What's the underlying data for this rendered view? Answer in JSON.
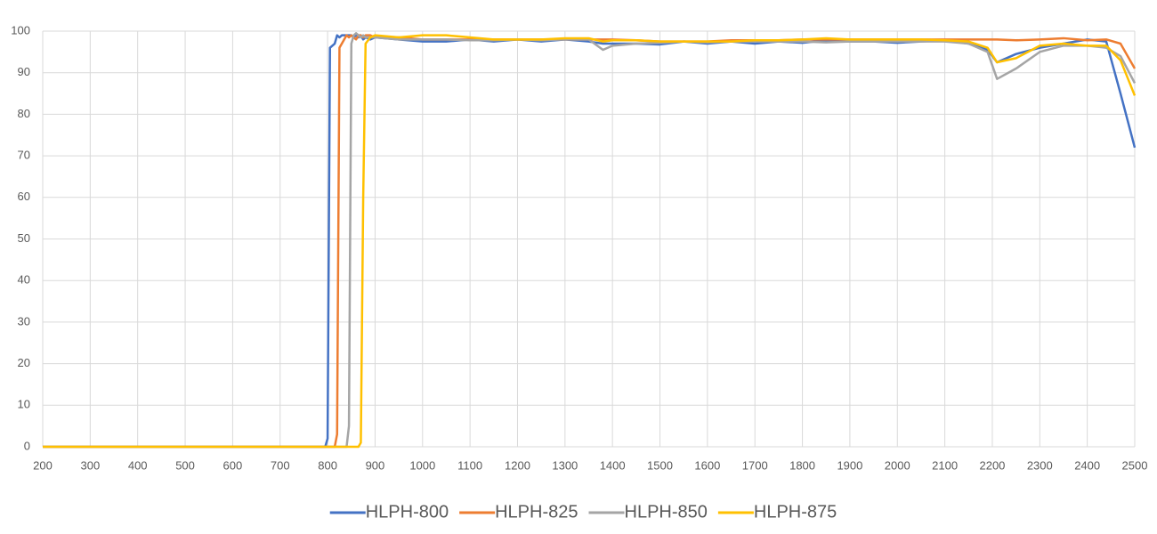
{
  "chart_data": {
    "type": "line",
    "x": [
      200,
      795,
      800,
      805,
      815,
      820,
      825,
      830,
      840,
      845,
      850,
      855,
      860,
      865,
      870,
      875,
      880,
      890,
      900,
      950,
      1000,
      1050,
      1100,
      1150,
      1200,
      1250,
      1300,
      1350,
      1380,
      1400,
      1450,
      1500,
      1550,
      1600,
      1650,
      1700,
      1750,
      1800,
      1850,
      1900,
      1950,
      2000,
      2050,
      2100,
      2150,
      2190,
      2210,
      2250,
      2300,
      2350,
      2400,
      2440,
      2470,
      2500
    ],
    "series": [
      {
        "name": "HLPH-800",
        "color": "#4472c4",
        "values": [
          0,
          0,
          2,
          96,
          97,
          99,
          98.5,
          99,
          99,
          99,
          99,
          98.5,
          99,
          98.5,
          99,
          98,
          98.5,
          98,
          98.5,
          98,
          97.5,
          97.5,
          98,
          97.5,
          98,
          97.5,
          98,
          97.5,
          97,
          97,
          97,
          96.8,
          97.5,
          97,
          97.5,
          97,
          97.5,
          97.2,
          97.8,
          97.5,
          97.5,
          97.2,
          97.5,
          97.8,
          97,
          95.5,
          92.5,
          94.5,
          96,
          97,
          98,
          97.5,
          85,
          72
        ]
      },
      {
        "name": "HLPH-825",
        "color": "#ed7d31",
        "values": [
          0,
          0,
          0,
          0,
          0,
          3,
          96,
          97,
          99,
          98.5,
          99,
          98.5,
          98,
          99,
          99,
          98.5,
          99,
          99,
          98.5,
          98.5,
          98,
          98,
          98,
          98,
          98,
          98,
          98,
          98,
          98,
          98,
          97.8,
          97.5,
          97.5,
          97.5,
          97.8,
          97.8,
          97.8,
          98,
          98,
          98,
          98,
          98,
          98,
          98,
          98,
          98,
          98,
          97.8,
          98,
          98.3,
          97.8,
          98,
          97,
          91
        ]
      },
      {
        "name": "HLPH-850",
        "color": "#a5a5a5",
        "values": [
          0,
          0,
          0,
          0,
          0,
          0,
          0,
          0,
          0,
          5,
          97,
          99,
          99.5,
          99,
          98.5,
          99,
          98.5,
          98.5,
          98.5,
          98,
          98,
          98,
          97.8,
          97.8,
          98,
          97.8,
          98,
          98,
          95.5,
          96.5,
          97,
          97.2,
          97.5,
          97.3,
          97.5,
          97.5,
          97.5,
          97.5,
          97.3,
          97.5,
          97.5,
          97.5,
          97.5,
          97.5,
          97,
          95,
          88.5,
          91,
          95,
          96.5,
          96.5,
          96,
          94,
          87.5
        ]
      },
      {
        "name": "HLPH-875",
        "color": "#ffc000",
        "values": [
          0,
          0,
          0,
          0,
          0,
          0,
          0,
          0,
          0,
          0,
          0,
          0,
          0,
          0,
          1,
          60,
          97,
          98.5,
          99,
          98.5,
          99,
          99,
          98.5,
          98,
          98,
          98,
          98.3,
          98.3,
          97.5,
          97.8,
          97.8,
          97.5,
          97.5,
          97.5,
          97.5,
          97.8,
          97.8,
          98,
          98.3,
          98,
          98,
          98,
          98,
          97.8,
          97.5,
          96,
          92.5,
          93.5,
          96.5,
          97,
          96.5,
          96.5,
          93,
          84.5
        ]
      }
    ],
    "xlim": [
      200,
      2500
    ],
    "xticks": [
      200,
      300,
      400,
      500,
      600,
      700,
      800,
      900,
      1000,
      1100,
      1200,
      1300,
      1400,
      1500,
      1600,
      1700,
      1800,
      1900,
      2000,
      2100,
      2200,
      2300,
      2400,
      2500
    ],
    "ylim": [
      0,
      100
    ],
    "yticks": [
      0,
      10,
      20,
      30,
      40,
      50,
      60,
      70,
      80,
      90,
      100
    ],
    "grid": true,
    "legend": "bottom"
  }
}
